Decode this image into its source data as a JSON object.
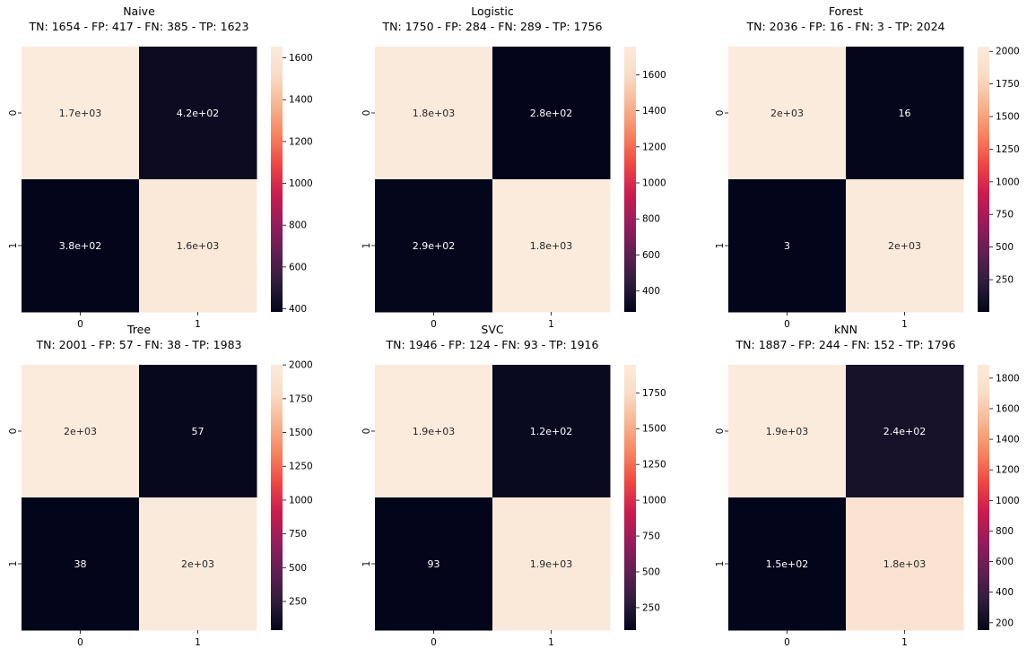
{
  "chart_data": [
    {
      "type": "heatmap",
      "title": "Naive",
      "subtitle": "TN: 1654 - FP: 417 - FN: 385 - TP: 1623",
      "x_tick_labels": [
        "0",
        "1"
      ],
      "y_tick_labels": [
        "0",
        "1"
      ],
      "matrix": [
        [
          1654,
          417
        ],
        [
          385,
          1623
        ]
      ],
      "cell_labels": [
        [
          "1.7e+03",
          "4.2e+02"
        ],
        [
          "3.8e+02",
          "1.6e+03"
        ]
      ],
      "colorbar_ticks": [
        "400",
        "600",
        "800",
        "1000",
        "1200",
        "1400",
        "1600"
      ],
      "colorbar_tick_values": [
        400,
        600,
        800,
        1000,
        1200,
        1400,
        1600
      ],
      "colorbar_range": [
        385,
        1654
      ]
    },
    {
      "type": "heatmap",
      "title": "Logistic",
      "subtitle": "TN: 1750 - FP: 284 - FN: 289 - TP: 1756",
      "x_tick_labels": [
        "0",
        "1"
      ],
      "y_tick_labels": [
        "0",
        "1"
      ],
      "matrix": [
        [
          1750,
          284
        ],
        [
          289,
          1756
        ]
      ],
      "cell_labels": [
        [
          "1.8e+03",
          "2.8e+02"
        ],
        [
          "2.9e+02",
          "1.8e+03"
        ]
      ],
      "colorbar_ticks": [
        "400",
        "600",
        "800",
        "1000",
        "1200",
        "1400",
        "1600"
      ],
      "colorbar_tick_values": [
        400,
        600,
        800,
        1000,
        1200,
        1400,
        1600
      ],
      "colorbar_range": [
        284,
        1756
      ]
    },
    {
      "type": "heatmap",
      "title": "Forest",
      "subtitle": "TN: 2036 - FP: 16 - FN: 3 - TP: 2024",
      "x_tick_labels": [
        "0",
        "1"
      ],
      "y_tick_labels": [
        "0",
        "1"
      ],
      "matrix": [
        [
          2036,
          16
        ],
        [
          3,
          2024
        ]
      ],
      "cell_labels": [
        [
          "2e+03",
          "16"
        ],
        [
          "3",
          "2e+03"
        ]
      ],
      "colorbar_ticks": [
        "250",
        "500",
        "750",
        "1000",
        "1250",
        "1500",
        "1750",
        "2000"
      ],
      "colorbar_tick_values": [
        250,
        500,
        750,
        1000,
        1250,
        1500,
        1750,
        2000
      ],
      "colorbar_range": [
        3,
        2036
      ]
    },
    {
      "type": "heatmap",
      "title": "Tree",
      "subtitle": "TN: 2001 - FP: 57 - FN: 38 - TP: 1983",
      "x_tick_labels": [
        "0",
        "1"
      ],
      "y_tick_labels": [
        "0",
        "1"
      ],
      "matrix": [
        [
          2001,
          57
        ],
        [
          38,
          1983
        ]
      ],
      "cell_labels": [
        [
          "2e+03",
          "57"
        ],
        [
          "38",
          "2e+03"
        ]
      ],
      "colorbar_ticks": [
        "250",
        "500",
        "750",
        "1000",
        "1250",
        "1500",
        "1750",
        "2000"
      ],
      "colorbar_tick_values": [
        250,
        500,
        750,
        1000,
        1250,
        1500,
        1750,
        2000
      ],
      "colorbar_range": [
        38,
        2001
      ]
    },
    {
      "type": "heatmap",
      "title": "SVC",
      "subtitle": "TN: 1946 - FP: 124 - FN: 93 - TP: 1916",
      "x_tick_labels": [
        "0",
        "1"
      ],
      "y_tick_labels": [
        "0",
        "1"
      ],
      "matrix": [
        [
          1946,
          124
        ],
        [
          93,
          1916
        ]
      ],
      "cell_labels": [
        [
          "1.9e+03",
          "1.2e+02"
        ],
        [
          "93",
          "1.9e+03"
        ]
      ],
      "colorbar_ticks": [
        "250",
        "500",
        "750",
        "1000",
        "1250",
        "1500",
        "1750"
      ],
      "colorbar_tick_values": [
        250,
        500,
        750,
        1000,
        1250,
        1500,
        1750
      ],
      "colorbar_range": [
        93,
        1946
      ]
    },
    {
      "type": "heatmap",
      "title": "kNN",
      "subtitle": "TN: 1887 - FP: 244 - FN: 152 - TP: 1796",
      "x_tick_labels": [
        "0",
        "1"
      ],
      "y_tick_labels": [
        "0",
        "1"
      ],
      "matrix": [
        [
          1887,
          244
        ],
        [
          152,
          1796
        ]
      ],
      "cell_labels": [
        [
          "1.9e+03",
          "2.4e+02"
        ],
        [
          "1.5e+02",
          "1.8e+03"
        ]
      ],
      "colorbar_ticks": [
        "200",
        "400",
        "600",
        "800",
        "1000",
        "1200",
        "1400",
        "1600",
        "1800"
      ],
      "colorbar_tick_values": [
        200,
        400,
        600,
        800,
        1000,
        1200,
        1400,
        1600,
        1800
      ],
      "colorbar_range": [
        152,
        1887
      ]
    }
  ],
  "colormap": {
    "name": "rocket",
    "stops": [
      "#03051a",
      "#2e1e3c",
      "#611f53",
      "#971c5b",
      "#cb1b4f",
      "#ef4643",
      "#f6845f",
      "#f6b48f",
      "#f9dcc4",
      "#faebdd"
    ]
  }
}
